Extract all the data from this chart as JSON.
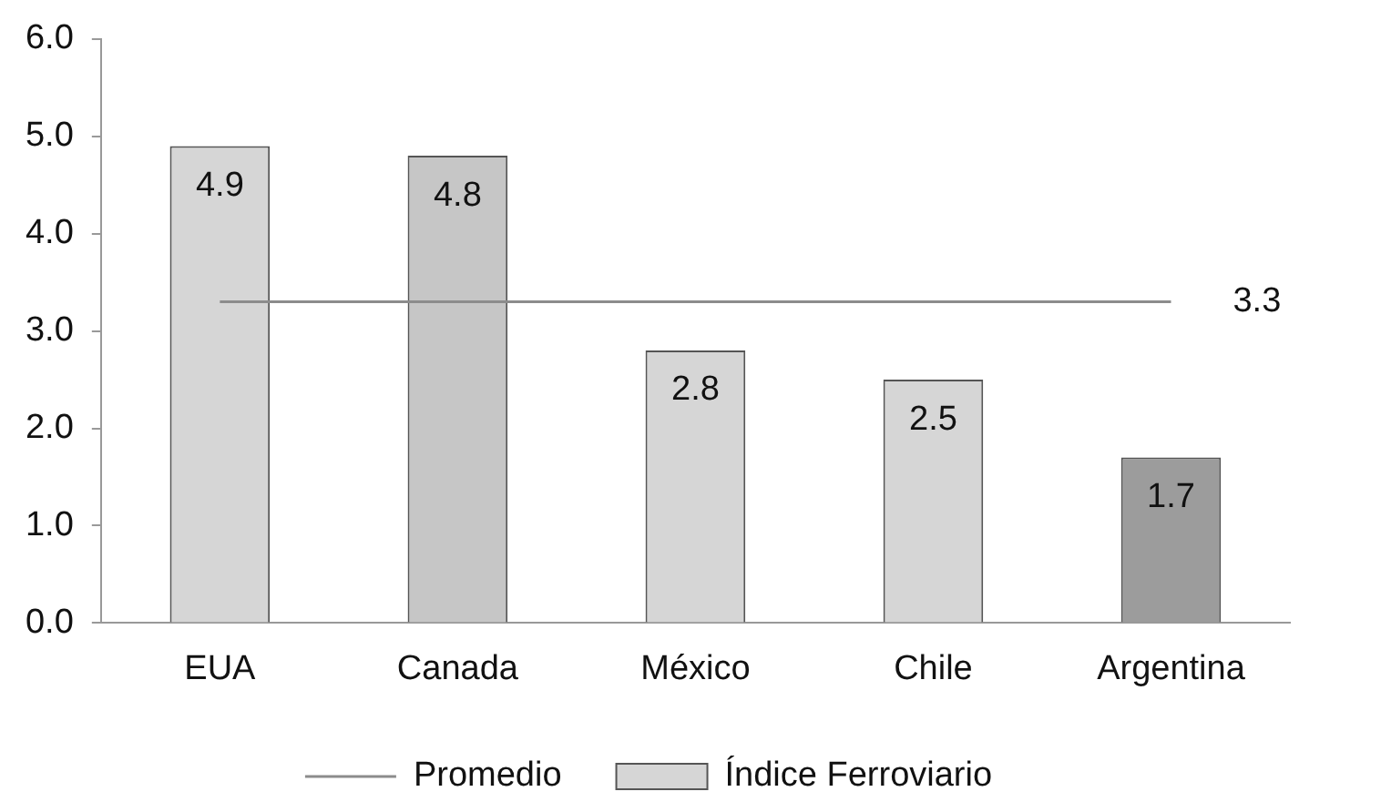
{
  "chart_data": {
    "type": "bar",
    "categories": [
      "EUA",
      "Canada",
      "México",
      "Chile",
      "Argentina"
    ],
    "series": [
      {
        "name": "Índice Ferroviario",
        "colors": [
          "#d6d6d6",
          "#c6c6c6",
          "#d6d6d6",
          "#d6d6d6",
          "#9c9c9c"
        ],
        "values": [
          4.9,
          4.8,
          2.8,
          2.5,
          1.7
        ],
        "value_labels": [
          "4.9",
          "4.8",
          "2.8",
          "2.5",
          "1.7"
        ]
      },
      {
        "name": "Promedio",
        "type": "line",
        "color": "#8c8c8c",
        "values": [
          3.3,
          3.3,
          3.3,
          3.3,
          3.3
        ],
        "value_labels": [
          null,
          null,
          null,
          null,
          "3.3"
        ]
      }
    ],
    "ylim": [
      0,
      6
    ],
    "yticks": [
      {
        "value": 0,
        "label": "0.0"
      },
      {
        "value": 1,
        "label": "1.0"
      },
      {
        "value": 2,
        "label": "2.0"
      },
      {
        "value": 3,
        "label": "3.0"
      },
      {
        "value": 4,
        "label": "4.0"
      },
      {
        "value": 5,
        "label": "5.0"
      },
      {
        "value": 6,
        "label": "6.0"
      }
    ],
    "grid": false,
    "legend": "bottom",
    "marker": "none"
  }
}
